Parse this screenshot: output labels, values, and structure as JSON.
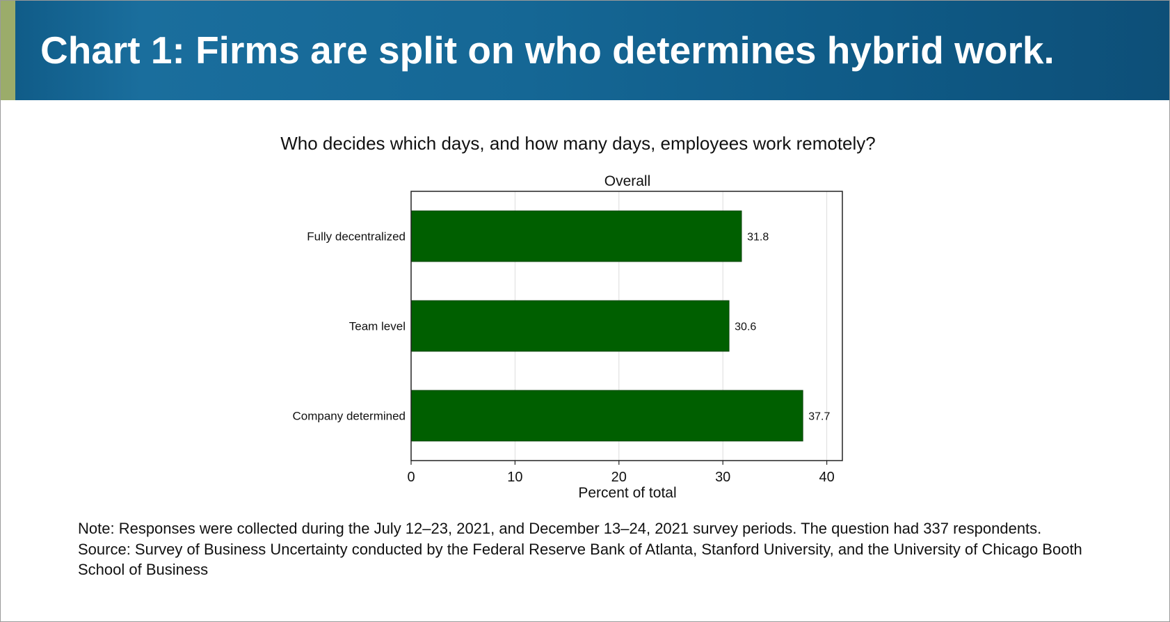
{
  "header": {
    "title": "Chart 1: Firms are split on who determines hybrid work."
  },
  "question": "Who decides which days, and how many days, employees work remotely?",
  "colors": {
    "banner": "#156795",
    "accent": "#9bac6a",
    "bar": "#005f00"
  },
  "chart_data": {
    "type": "bar",
    "orientation": "horizontal",
    "title": "Overall",
    "xlabel": "Percent of total",
    "ylabel": "",
    "categories": [
      "Fully decentralized",
      "Team level",
      "Company determined"
    ],
    "values": [
      31.8,
      30.6,
      37.7
    ],
    "value_labels": [
      "31.8",
      "30.6",
      "37.7"
    ],
    "xlim": [
      0,
      41.5
    ],
    "xticks": [
      0,
      10,
      20,
      30,
      40
    ],
    "grid": true,
    "legend": false
  },
  "notes": {
    "note": "Note: Responses were collected during the July 12–23, 2021, and December 13–24, 2021 survey periods. The question had 337 respondents.",
    "source": "Source: Survey of Business Uncertainty conducted by the Federal Reserve Bank of Atlanta, Stanford University, and the University of Chicago Booth School of Business"
  }
}
